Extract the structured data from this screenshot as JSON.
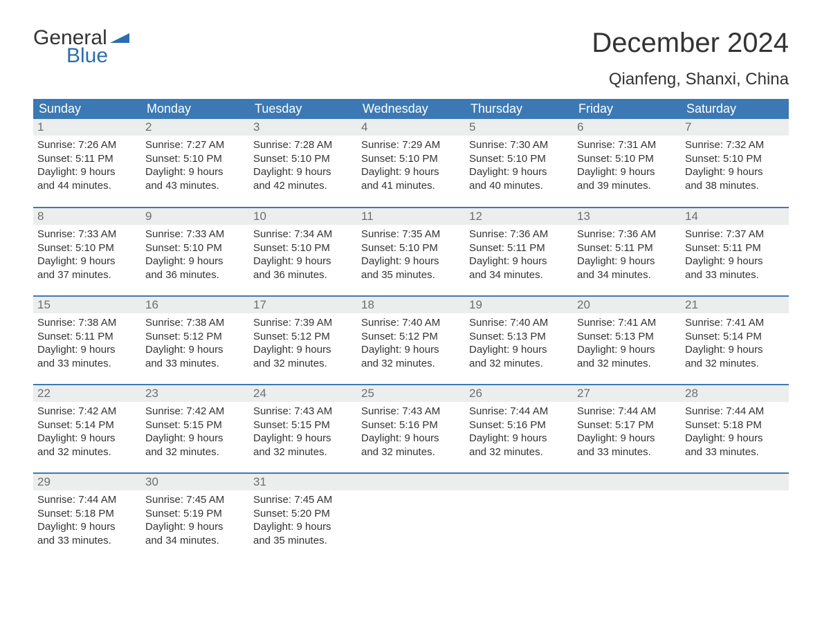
{
  "brand": {
    "general": "General",
    "blue": "Blue"
  },
  "title": "December 2024",
  "location": "Qianfeng, Shanxi, China",
  "colors": {
    "header_bg": "#3c79b4",
    "header_text": "#ffffff",
    "daynum_bg": "#eceded",
    "daynum_text": "#6d6e70",
    "body_text": "#333333",
    "brand_blue": "#2a6db0",
    "week_border": "#3c79b4",
    "page_bg": "#ffffff"
  },
  "typography": {
    "title_fontsize": 40,
    "location_fontsize": 24,
    "header_fontsize": 18,
    "daynum_fontsize": 17,
    "body_fontsize": 15,
    "logo_fontsize": 30
  },
  "day_headers": [
    "Sunday",
    "Monday",
    "Tuesday",
    "Wednesday",
    "Thursday",
    "Friday",
    "Saturday"
  ],
  "weeks": [
    [
      {
        "num": "1",
        "sunrise": "Sunrise: 7:26 AM",
        "sunset": "Sunset: 5:11 PM",
        "dl1": "Daylight: 9 hours",
        "dl2": "and 44 minutes."
      },
      {
        "num": "2",
        "sunrise": "Sunrise: 7:27 AM",
        "sunset": "Sunset: 5:10 PM",
        "dl1": "Daylight: 9 hours",
        "dl2": "and 43 minutes."
      },
      {
        "num": "3",
        "sunrise": "Sunrise: 7:28 AM",
        "sunset": "Sunset: 5:10 PM",
        "dl1": "Daylight: 9 hours",
        "dl2": "and 42 minutes."
      },
      {
        "num": "4",
        "sunrise": "Sunrise: 7:29 AM",
        "sunset": "Sunset: 5:10 PM",
        "dl1": "Daylight: 9 hours",
        "dl2": "and 41 minutes."
      },
      {
        "num": "5",
        "sunrise": "Sunrise: 7:30 AM",
        "sunset": "Sunset: 5:10 PM",
        "dl1": "Daylight: 9 hours",
        "dl2": "and 40 minutes."
      },
      {
        "num": "6",
        "sunrise": "Sunrise: 7:31 AM",
        "sunset": "Sunset: 5:10 PM",
        "dl1": "Daylight: 9 hours",
        "dl2": "and 39 minutes."
      },
      {
        "num": "7",
        "sunrise": "Sunrise: 7:32 AM",
        "sunset": "Sunset: 5:10 PM",
        "dl1": "Daylight: 9 hours",
        "dl2": "and 38 minutes."
      }
    ],
    [
      {
        "num": "8",
        "sunrise": "Sunrise: 7:33 AM",
        "sunset": "Sunset: 5:10 PM",
        "dl1": "Daylight: 9 hours",
        "dl2": "and 37 minutes."
      },
      {
        "num": "9",
        "sunrise": "Sunrise: 7:33 AM",
        "sunset": "Sunset: 5:10 PM",
        "dl1": "Daylight: 9 hours",
        "dl2": "and 36 minutes."
      },
      {
        "num": "10",
        "sunrise": "Sunrise: 7:34 AM",
        "sunset": "Sunset: 5:10 PM",
        "dl1": "Daylight: 9 hours",
        "dl2": "and 36 minutes."
      },
      {
        "num": "11",
        "sunrise": "Sunrise: 7:35 AM",
        "sunset": "Sunset: 5:10 PM",
        "dl1": "Daylight: 9 hours",
        "dl2": "and 35 minutes."
      },
      {
        "num": "12",
        "sunrise": "Sunrise: 7:36 AM",
        "sunset": "Sunset: 5:11 PM",
        "dl1": "Daylight: 9 hours",
        "dl2": "and 34 minutes."
      },
      {
        "num": "13",
        "sunrise": "Sunrise: 7:36 AM",
        "sunset": "Sunset: 5:11 PM",
        "dl1": "Daylight: 9 hours",
        "dl2": "and 34 minutes."
      },
      {
        "num": "14",
        "sunrise": "Sunrise: 7:37 AM",
        "sunset": "Sunset: 5:11 PM",
        "dl1": "Daylight: 9 hours",
        "dl2": "and 33 minutes."
      }
    ],
    [
      {
        "num": "15",
        "sunrise": "Sunrise: 7:38 AM",
        "sunset": "Sunset: 5:11 PM",
        "dl1": "Daylight: 9 hours",
        "dl2": "and 33 minutes."
      },
      {
        "num": "16",
        "sunrise": "Sunrise: 7:38 AM",
        "sunset": "Sunset: 5:12 PM",
        "dl1": "Daylight: 9 hours",
        "dl2": "and 33 minutes."
      },
      {
        "num": "17",
        "sunrise": "Sunrise: 7:39 AM",
        "sunset": "Sunset: 5:12 PM",
        "dl1": "Daylight: 9 hours",
        "dl2": "and 32 minutes."
      },
      {
        "num": "18",
        "sunrise": "Sunrise: 7:40 AM",
        "sunset": "Sunset: 5:12 PM",
        "dl1": "Daylight: 9 hours",
        "dl2": "and 32 minutes."
      },
      {
        "num": "19",
        "sunrise": "Sunrise: 7:40 AM",
        "sunset": "Sunset: 5:13 PM",
        "dl1": "Daylight: 9 hours",
        "dl2": "and 32 minutes."
      },
      {
        "num": "20",
        "sunrise": "Sunrise: 7:41 AM",
        "sunset": "Sunset: 5:13 PM",
        "dl1": "Daylight: 9 hours",
        "dl2": "and 32 minutes."
      },
      {
        "num": "21",
        "sunrise": "Sunrise: 7:41 AM",
        "sunset": "Sunset: 5:14 PM",
        "dl1": "Daylight: 9 hours",
        "dl2": "and 32 minutes."
      }
    ],
    [
      {
        "num": "22",
        "sunrise": "Sunrise: 7:42 AM",
        "sunset": "Sunset: 5:14 PM",
        "dl1": "Daylight: 9 hours",
        "dl2": "and 32 minutes."
      },
      {
        "num": "23",
        "sunrise": "Sunrise: 7:42 AM",
        "sunset": "Sunset: 5:15 PM",
        "dl1": "Daylight: 9 hours",
        "dl2": "and 32 minutes."
      },
      {
        "num": "24",
        "sunrise": "Sunrise: 7:43 AM",
        "sunset": "Sunset: 5:15 PM",
        "dl1": "Daylight: 9 hours",
        "dl2": "and 32 minutes."
      },
      {
        "num": "25",
        "sunrise": "Sunrise: 7:43 AM",
        "sunset": "Sunset: 5:16 PM",
        "dl1": "Daylight: 9 hours",
        "dl2": "and 32 minutes."
      },
      {
        "num": "26",
        "sunrise": "Sunrise: 7:44 AM",
        "sunset": "Sunset: 5:16 PM",
        "dl1": "Daylight: 9 hours",
        "dl2": "and 32 minutes."
      },
      {
        "num": "27",
        "sunrise": "Sunrise: 7:44 AM",
        "sunset": "Sunset: 5:17 PM",
        "dl1": "Daylight: 9 hours",
        "dl2": "and 33 minutes."
      },
      {
        "num": "28",
        "sunrise": "Sunrise: 7:44 AM",
        "sunset": "Sunset: 5:18 PM",
        "dl1": "Daylight: 9 hours",
        "dl2": "and 33 minutes."
      }
    ],
    [
      {
        "num": "29",
        "sunrise": "Sunrise: 7:44 AM",
        "sunset": "Sunset: 5:18 PM",
        "dl1": "Daylight: 9 hours",
        "dl2": "and 33 minutes."
      },
      {
        "num": "30",
        "sunrise": "Sunrise: 7:45 AM",
        "sunset": "Sunset: 5:19 PM",
        "dl1": "Daylight: 9 hours",
        "dl2": "and 34 minutes."
      },
      {
        "num": "31",
        "sunrise": "Sunrise: 7:45 AM",
        "sunset": "Sunset: 5:20 PM",
        "dl1": "Daylight: 9 hours",
        "dl2": "and 35 minutes."
      },
      null,
      null,
      null,
      null
    ]
  ]
}
